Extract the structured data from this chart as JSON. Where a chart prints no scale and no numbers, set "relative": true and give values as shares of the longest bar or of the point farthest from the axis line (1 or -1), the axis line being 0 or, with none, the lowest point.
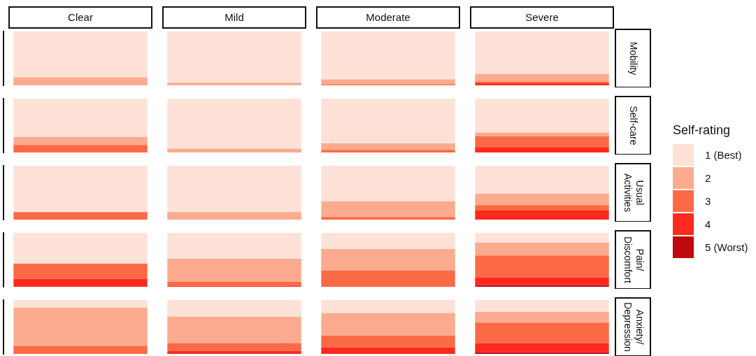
{
  "chart_data": [
    {
      "type": "bar",
      "stacked": true,
      "relative": true,
      "categories": [
        "Clear",
        "Mild",
        "Moderate",
        "Severe"
      ],
      "tick_labels": "x",
      "y2label": "Mobility",
      "legend": "right",
      "legend_title": "Self-rating",
      "series": [
        {
          "name": "5 (Worst)",
          "color": "#c0090e",
          "values": [
            0,
            0,
            0,
            0
          ]
        },
        {
          "name": "4",
          "color": "#ff2a1f",
          "values": [
            0,
            0,
            0,
            0.04
          ]
        },
        {
          "name": "3",
          "color": "#fc6a45",
          "values": [
            0,
            0,
            0.02,
            0.03
          ]
        },
        {
          "name": "2",
          "color": "#fcab8f",
          "values": [
            0.15,
            0.05,
            0.09,
            0.14
          ]
        },
        {
          "name": "1 (Best)",
          "color": "#fee2d8",
          "values": [
            0.85,
            0.95,
            0.89,
            0.79
          ]
        }
      ]
    },
    {
      "type": "bar",
      "stacked": true,
      "relative": true,
      "categories": [
        null,
        null,
        null,
        null
      ],
      "tick_labels": false,
      "y2label": "Self-care",
      "series": [
        {
          "color": "#c0090e",
          "values": [
            0,
            0,
            0,
            0
          ]
        },
        {
          "color": "#ff2a1f",
          "values": [
            0,
            0,
            0,
            0.1
          ]
        },
        {
          "color": "#fc6a45",
          "values": [
            0.14,
            0,
            0.05,
            0.2
          ]
        },
        {
          "color": "#fcab8f",
          "values": [
            0.15,
            0.07,
            0.12,
            0.07
          ]
        },
        {
          "color": "#fee2d8",
          "values": [
            0.71,
            0.93,
            0.83,
            0.63
          ]
        }
      ]
    },
    {
      "type": "bar",
      "stacked": true,
      "relative": true,
      "categories": [
        null,
        null,
        null,
        null
      ],
      "tick_labels": false,
      "y2label": "Usual Activities",
      "series": [
        {
          "color": "#c0090e",
          "values": [
            0,
            0,
            0,
            0
          ]
        },
        {
          "color": "#ff2a1f",
          "values": [
            0,
            0,
            0,
            0.17
          ]
        },
        {
          "color": "#fc6a45",
          "values": [
            0.14,
            0,
            0.05,
            0.1
          ]
        },
        {
          "color": "#fcab8f",
          "values": [
            0,
            0.14,
            0.29,
            0.21
          ]
        },
        {
          "color": "#fee2d8",
          "values": [
            0.86,
            0.86,
            0.66,
            0.52
          ]
        }
      ]
    },
    {
      "type": "bar",
      "stacked": true,
      "relative": true,
      "categories": [
        null,
        null,
        null,
        null
      ],
      "tick_labels": false,
      "y2label": "Pain/ Discomfort",
      "series": [
        {
          "color": "#c0090e",
          "values": [
            0,
            0,
            0,
            0.03
          ]
        },
        {
          "color": "#ff2a1f",
          "values": [
            0.15,
            0.02,
            0.01,
            0.14
          ]
        },
        {
          "color": "#fc6a45",
          "values": [
            0.28,
            0.07,
            0.29,
            0.41
          ]
        },
        {
          "color": "#fcab8f",
          "values": [
            0,
            0.43,
            0.4,
            0.24
          ]
        },
        {
          "color": "#fee2d8",
          "values": [
            0.57,
            0.48,
            0.3,
            0.18
          ]
        }
      ]
    },
    {
      "type": "bar",
      "stacked": true,
      "relative": true,
      "categories": [
        null,
        null,
        null,
        null
      ],
      "tick_labels": false,
      "y2label": "Anxiety/ Depression",
      "series": [
        {
          "color": "#c0090e",
          "values": [
            0,
            0.01,
            0,
            0.03
          ]
        },
        {
          "color": "#ff2a1f",
          "values": [
            0,
            0.05,
            0.12,
            0.17
          ]
        },
        {
          "color": "#fc6a45",
          "values": [
            0.15,
            0.14,
            0.22,
            0.38
          ]
        },
        {
          "color": "#fcab8f",
          "values": [
            0.71,
            0.49,
            0.42,
            0.2
          ]
        },
        {
          "color": "#fee2d8",
          "values": [
            0.14,
            0.31,
            0.24,
            0.22
          ]
        }
      ]
    }
  ]
}
